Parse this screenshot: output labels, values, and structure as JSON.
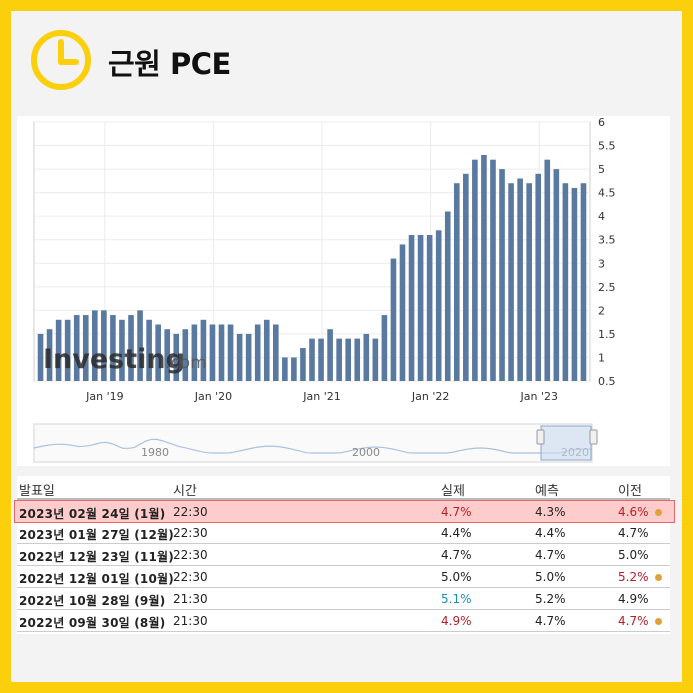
{
  "title": "근원 PCE",
  "icon": "clock-icon",
  "colors": {
    "frame": "#fbcf0c",
    "bar": "#5a79a0",
    "red": "#b3202a",
    "blue": "#1c8fb0",
    "highlight": "#ffcccc",
    "dot": "#e0a03a"
  },
  "watermark": {
    "bold": "Investing",
    "light": ".com"
  },
  "chart_data": {
    "type": "bar",
    "x_ticks": [
      "Jan '19",
      "Jan '20",
      "Jan '21",
      "Jan '22",
      "Jan '23"
    ],
    "ylim": [
      0.5,
      6
    ],
    "y_ticks": [
      "0.5",
      "1",
      "1.5",
      "2",
      "2.5",
      "3",
      "3.5",
      "4",
      "4.5",
      "5",
      "5.5",
      "6"
    ],
    "grid": true,
    "values": [
      1.5,
      1.6,
      1.8,
      1.8,
      1.9,
      1.9,
      2.0,
      2.0,
      1.9,
      1.8,
      1.9,
      2.0,
      1.8,
      1.7,
      1.6,
      1.5,
      1.6,
      1.7,
      1.8,
      1.7,
      1.7,
      1.7,
      1.5,
      1.5,
      1.7,
      1.8,
      1.7,
      1.0,
      1.0,
      1.2,
      1.4,
      1.4,
      1.6,
      1.4,
      1.4,
      1.4,
      1.5,
      1.4,
      1.9,
      3.1,
      3.4,
      3.6,
      3.6,
      3.6,
      3.7,
      4.1,
      4.7,
      4.9,
      5.2,
      5.3,
      5.2,
      5.0,
      4.7,
      4.8,
      4.7,
      4.9,
      5.2,
      5.0,
      4.7,
      4.6,
      4.7
    ],
    "navigator_labels": [
      "1980",
      "2000",
      "2020"
    ]
  },
  "table": {
    "headers": {
      "date": "발표일",
      "time": "시간",
      "actual": "실제",
      "forecast": "예측",
      "previous": "이전"
    },
    "rows": [
      {
        "date": "2023년 02월 24일 (1월)",
        "time": "22:30",
        "actual": "4.7%",
        "forecast": "4.3%",
        "previous": "4.6%"
      },
      {
        "date": "2023년 01월 27일 (12월)",
        "time": "22:30",
        "actual": "4.4%",
        "forecast": "4.4%",
        "previous": "4.7%"
      },
      {
        "date": "2022년 12월 23일 (11월)",
        "time": "22:30",
        "actual": "4.7%",
        "forecast": "4.7%",
        "previous": "5.0%"
      },
      {
        "date": "2022년 12월 01일 (10월)",
        "time": "22:30",
        "actual": "5.0%",
        "forecast": "5.0%",
        "previous": "5.2%"
      },
      {
        "date": "2022년 10월 28일 (9월)",
        "time": "21:30",
        "actual": "5.1%",
        "forecast": "5.2%",
        "previous": "4.9%"
      },
      {
        "date": "2022년 09월 30일 (8월)",
        "time": "21:30",
        "actual": "4.9%",
        "forecast": "4.7%",
        "previous": "4.7%"
      }
    ]
  }
}
